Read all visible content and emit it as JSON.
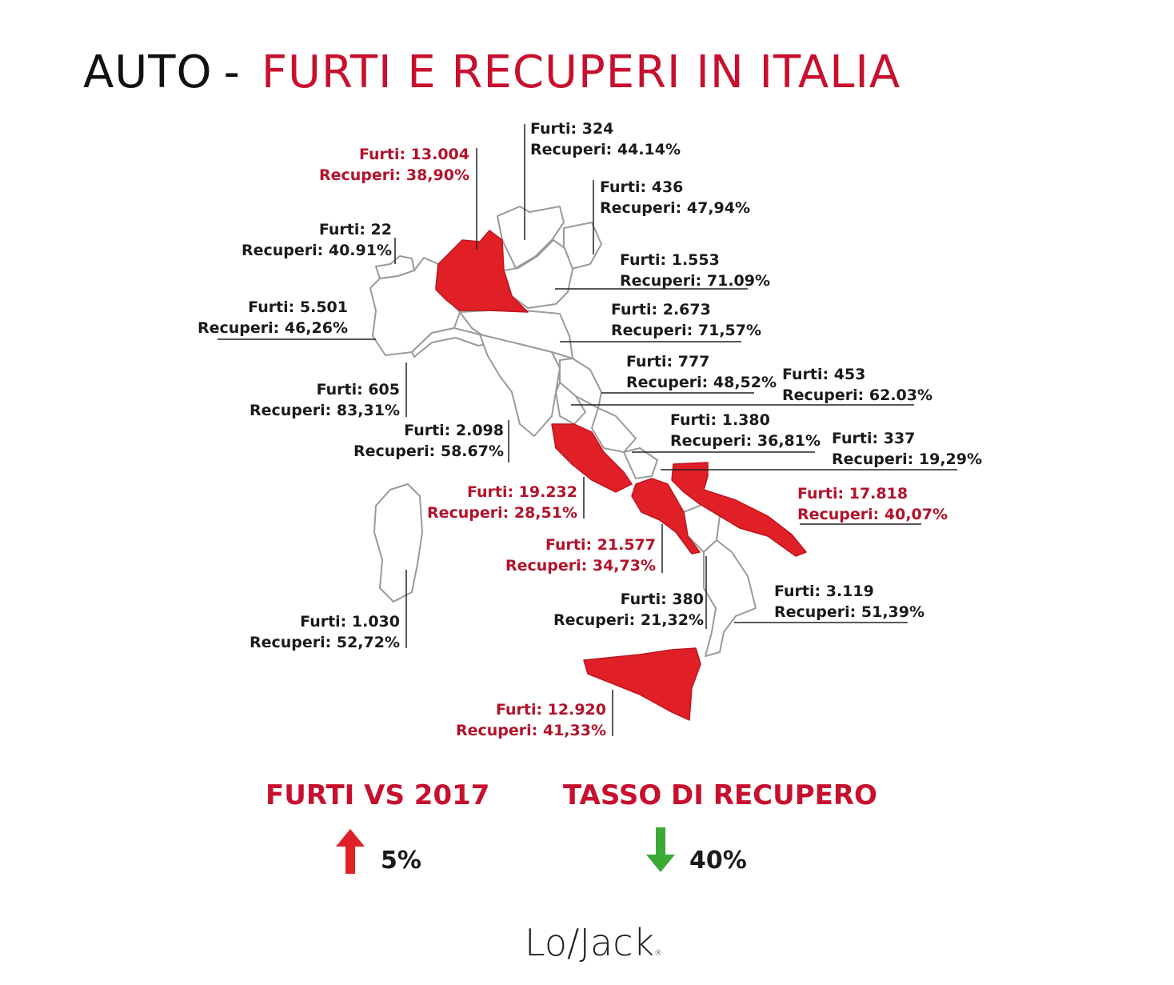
{
  "title": {
    "part1": "AUTO",
    "sep": "-",
    "part2": "FURTI E RECUPERI IN ITALIA"
  },
  "colors": {
    "highlight": "#e01f26",
    "highlight_text": "#b3122a",
    "title_red": "#c8102e",
    "arrow_up": "#e01f26",
    "arrow_down": "#3aaa35",
    "text": "#1a1a1a"
  },
  "regions": {
    "valle_aosta": {
      "furti": "Furti: 22",
      "recuperi": "Recuperi: 40.91%",
      "highlighted": false
    },
    "lombardia": {
      "furti": "Furti: 13.004",
      "recuperi": "Recuperi: 38,90%",
      "highlighted": true
    },
    "trentino": {
      "furti": "Furti: 324",
      "recuperi": "Recuperi: 44.14%",
      "highlighted": false
    },
    "friuli": {
      "furti": "Furti: 436",
      "recuperi": "Recuperi: 47,94%",
      "highlighted": false
    },
    "veneto": {
      "furti": "Furti: 1.553",
      "recuperi": "Recuperi: 71.09%",
      "highlighted": false
    },
    "piemonte": {
      "furti": "Furti: 5.501",
      "recuperi": "Recuperi: 46,26%",
      "highlighted": false
    },
    "emilia_romagna": {
      "furti": "Furti: 2.673",
      "recuperi": "Recuperi: 71,57%",
      "highlighted": false
    },
    "liguria": {
      "furti": "Furti: 605",
      "recuperi": "Recuperi: 83,31%",
      "highlighted": false
    },
    "marche": {
      "furti": "Furti: 777",
      "recuperi": "Recuperi: 48,52%",
      "highlighted": false
    },
    "umbria": {
      "furti": "Furti: 453",
      "recuperi": "Recuperi: 62.03%",
      "highlighted": false
    },
    "toscana": {
      "furti": "Furti: 2.098",
      "recuperi": "Recuperi:  58.67%",
      "highlighted": false
    },
    "abruzzo": {
      "furti": "Furti: 1.380",
      "recuperi": "Recuperi: 36,81%",
      "highlighted": false
    },
    "molise": {
      "furti": "Furti: 337",
      "recuperi": "Recuperi: 19,29%",
      "highlighted": false
    },
    "lazio": {
      "furti": "Furti: 19.232",
      "recuperi": "Recuperi: 28,51%",
      "highlighted": true
    },
    "puglia": {
      "furti": "Furti: 17.818",
      "recuperi": "Recuperi: 40,07%",
      "highlighted": true
    },
    "campania": {
      "furti": "Furti: 21.577",
      "recuperi": "Recuperi: 34,73%",
      "highlighted": true
    },
    "basilicata": {
      "furti": "Furti: 380",
      "recuperi": "Recuperi: 21,32%",
      "highlighted": false
    },
    "calabria": {
      "furti": "Furti: 3.119",
      "recuperi": "Recuperi: 51,39%",
      "highlighted": false
    },
    "sardegna": {
      "furti": "Furti: 1.030",
      "recuperi": "Recuperi: 52,72%",
      "highlighted": false
    },
    "sicilia": {
      "furti": "Furti: 12.920",
      "recuperi": "Recuperi: 41,33%",
      "highlighted": true
    }
  },
  "stats": {
    "furti": {
      "title": "FURTI VS 2017",
      "value": "5%",
      "direction": "up-arrow-icon"
    },
    "recupero": {
      "title": "TASSO DI  RECUPERO",
      "value": "40%",
      "direction": "down-arrow-icon"
    }
  },
  "logo": {
    "text": "Lo/Jack",
    "mark": "®"
  }
}
